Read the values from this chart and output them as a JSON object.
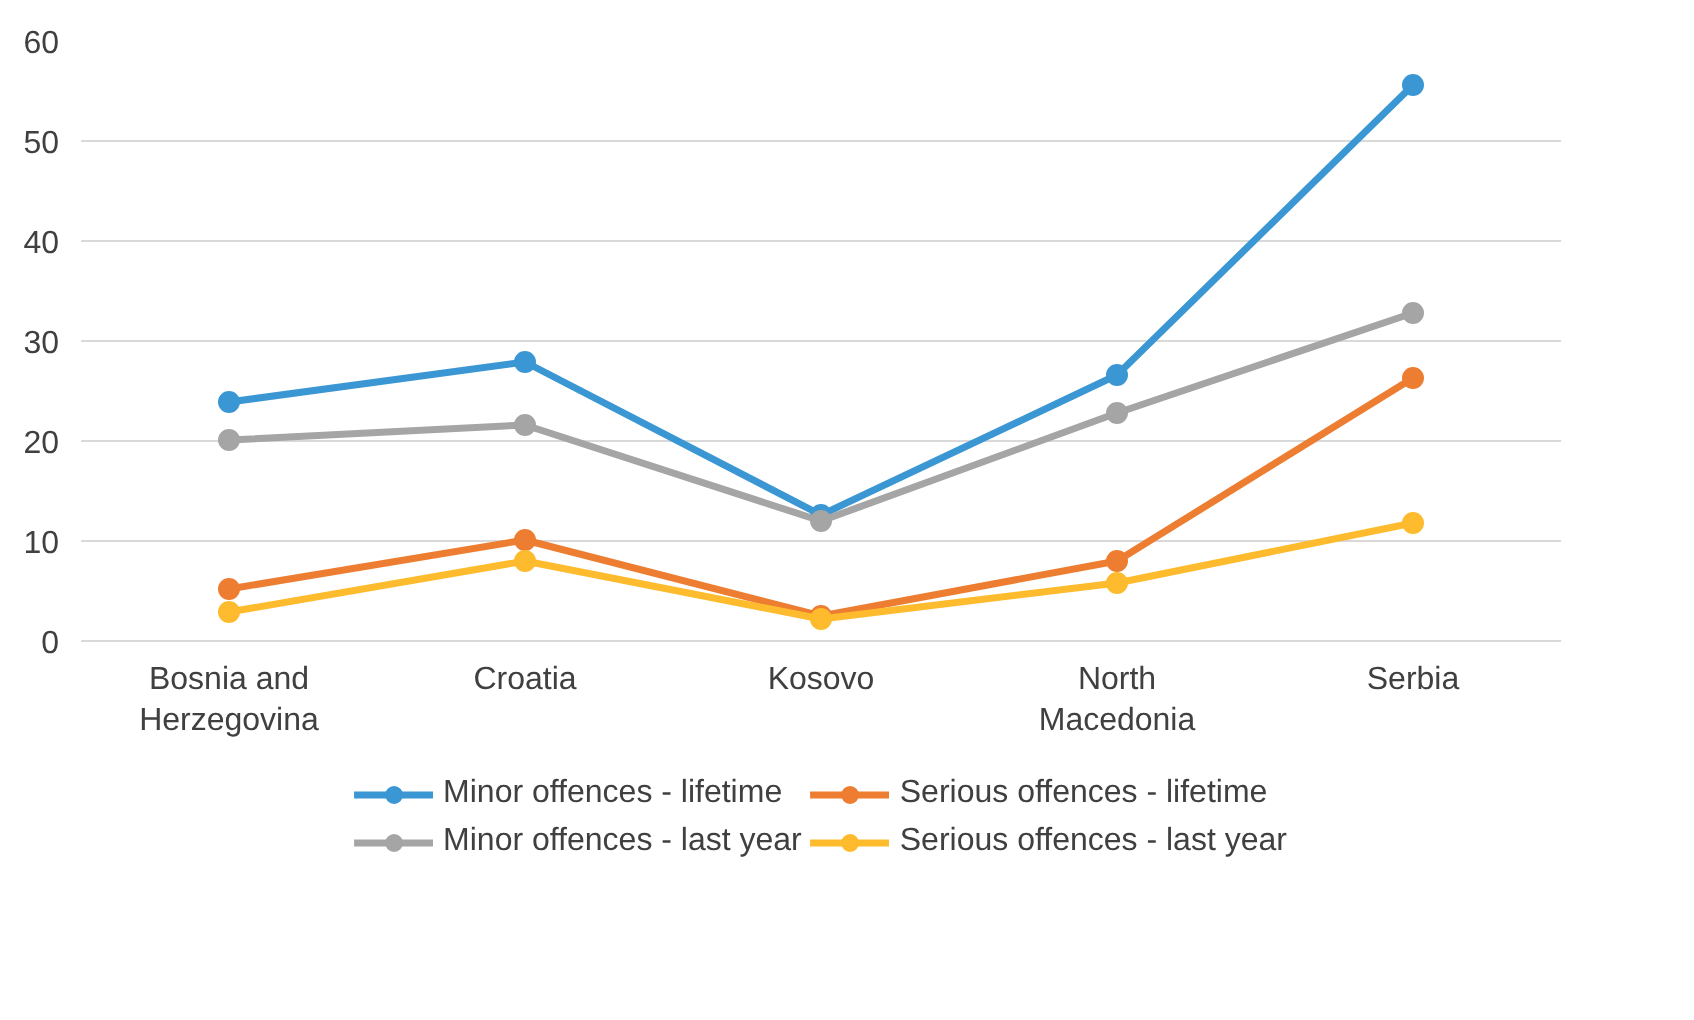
{
  "chart_data": {
    "type": "line",
    "categories": [
      "Bosnia and Herzegovina",
      "Croatia",
      "Kosovo",
      "North Macedonia",
      "Serbia"
    ],
    "series": [
      {
        "name": "Minor offences - lifetime",
        "color": "#3b97d3",
        "values": [
          23.9,
          27.9,
          12.6,
          26.6,
          55.6
        ]
      },
      {
        "name": "Serious offences - lifetime",
        "color": "#ed7d31",
        "values": [
          5.2,
          10.1,
          2.5,
          8.0,
          26.3
        ]
      },
      {
        "name": "Minor offences - last year",
        "color": "#a5a5a5",
        "values": [
          20.1,
          21.6,
          12.0,
          22.8,
          32.8
        ]
      },
      {
        "name": "Serious offences - last year",
        "color": "#fdbb2d",
        "values": [
          2.9,
          8.0,
          2.2,
          5.8,
          11.8
        ]
      }
    ],
    "ylim": [
      0,
      60
    ],
    "yticks": [
      0,
      10,
      20,
      30,
      40,
      50,
      60
    ],
    "grid": "y",
    "legend": "bottom",
    "marker": "circle",
    "line_style": "solid"
  }
}
